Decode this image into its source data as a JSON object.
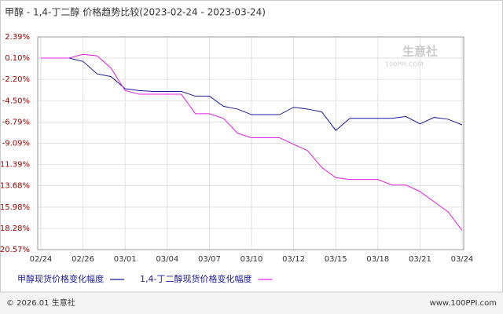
{
  "chart_data": {
    "type": "line",
    "title": "甲醇 - 1,4-丁二醇 价格趋势比较(2023-02-24 - 2023-03-24)",
    "categories": [
      "02/24",
      null,
      null,
      "02/26",
      null,
      null,
      "03/01",
      null,
      null,
      "03/04",
      null,
      null,
      "03/07",
      null,
      null,
      "03/10",
      null,
      null,
      "03/12",
      null,
      null,
      "03/15",
      null,
      null,
      "03/18",
      null,
      null,
      "03/21",
      null,
      null,
      "03/24"
    ],
    "series": [
      {
        "name": "甲醇现货价格变化幅度",
        "color": "#1a1a9c",
        "values": [
          0.1,
          0.1,
          0.1,
          -0.25,
          -1.6,
          -1.9,
          -3.2,
          -3.4,
          -3.5,
          -3.5,
          -3.5,
          -4.0,
          -4.0,
          -5.1,
          -5.4,
          -6.0,
          -6.0,
          -6.0,
          -5.2,
          -5.4,
          -5.7,
          -7.7,
          -6.4,
          -6.4,
          -6.4,
          -6.4,
          -6.2,
          -7.0,
          -6.3,
          -6.5,
          -7.1
        ]
      },
      {
        "name": "1,4-丁二醇现货价格变化幅度",
        "color": "#e020e0",
        "values": [
          0.1,
          0.1,
          0.1,
          0.5,
          0.35,
          -1.0,
          -3.4,
          -3.8,
          -3.8,
          -3.8,
          -3.8,
          -5.9,
          -5.9,
          -6.4,
          -8.0,
          -8.5,
          -8.5,
          -8.5,
          -9.2,
          -9.9,
          -11.7,
          -12.8,
          -13.0,
          -13.0,
          -13.0,
          -13.6,
          -13.6,
          -14.3,
          -15.4,
          -16.5,
          -18.5
        ]
      }
    ],
    "ylim": [
      -20.57,
      2.39
    ],
    "yticks": [
      {
        "value": 2.39,
        "label": "2.39%"
      },
      {
        "value": 0.1,
        "label": "0.10%"
      },
      {
        "value": -2.2,
        "label": "-2.20%"
      },
      {
        "value": -4.5,
        "label": "-4.50%"
      },
      {
        "value": -6.79,
        "label": "-6.79%"
      },
      {
        "value": -9.09,
        "label": "-9.09%"
      },
      {
        "value": -11.39,
        "label": "-11.39%"
      },
      {
        "value": -13.68,
        "label": "-13.68%"
      },
      {
        "value": -15.98,
        "label": "-15.98%"
      },
      {
        "value": -18.28,
        "label": "-18.28%"
      },
      {
        "value": -20.57,
        "label": "-20.57%"
      }
    ],
    "grid": true,
    "watermark": "生意社",
    "watermark_sub": "100PPI.COM"
  },
  "footer": {
    "left": "© 2026.01 生意社",
    "right": "www.100PPI.com"
  }
}
